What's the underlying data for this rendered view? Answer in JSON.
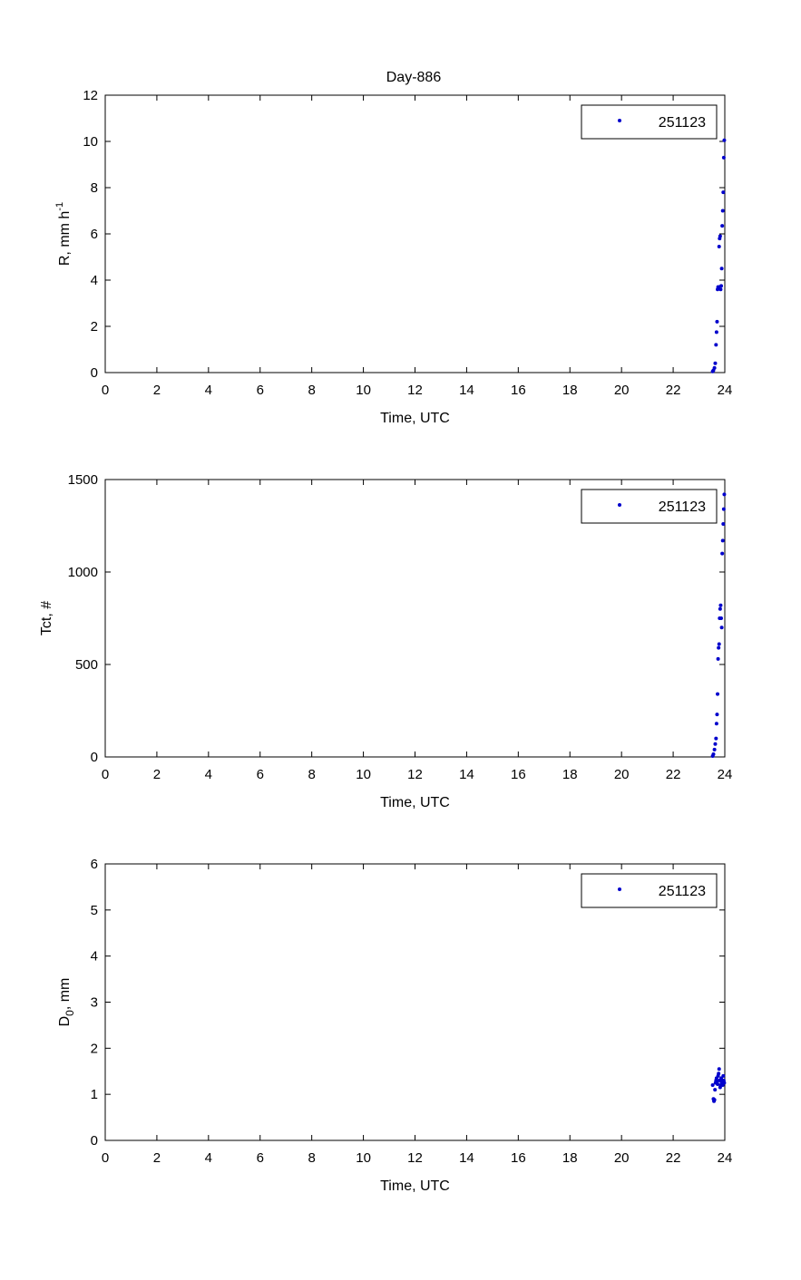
{
  "figure": {
    "title": "Day-886"
  },
  "chart_data": [
    {
      "type": "scatter",
      "title": "Day-886",
      "xlabel": "Time, UTC",
      "ylabel": "R, mm h",
      "ylabel_sup": "-1",
      "xlim": [
        0,
        24
      ],
      "ylim": [
        0,
        12
      ],
      "xticks": [
        0,
        2,
        4,
        6,
        8,
        10,
        12,
        14,
        16,
        18,
        20,
        22,
        24
      ],
      "yticks": [
        0,
        2,
        4,
        6,
        8,
        10,
        12
      ],
      "grid": false,
      "legend_position": "top-right",
      "series": [
        {
          "name": "251123",
          "color": "#0000cc",
          "marker": "dot",
          "x": [
            23.53,
            23.56,
            23.6,
            23.63,
            23.66,
            23.68,
            23.7,
            23.72,
            23.74,
            23.76,
            23.78,
            23.8,
            23.82,
            23.84,
            23.86,
            23.88,
            23.9,
            23.92,
            23.94,
            23.96,
            23.98
          ],
          "y": [
            0.05,
            0.1,
            0.2,
            0.4,
            1.2,
            1.75,
            2.2,
            3.6,
            3.7,
            3.7,
            5.45,
            5.8,
            5.9,
            3.6,
            3.75,
            4.5,
            6.35,
            7.0,
            7.8,
            9.3,
            10.05
          ]
        }
      ]
    },
    {
      "type": "scatter",
      "title": "",
      "xlabel": "Time, UTC",
      "ylabel": "Tct, #",
      "xlim": [
        0,
        24
      ],
      "ylim": [
        0,
        1500
      ],
      "xticks": [
        0,
        2,
        4,
        6,
        8,
        10,
        12,
        14,
        16,
        18,
        20,
        22,
        24
      ],
      "yticks": [
        0,
        500,
        1000,
        1500
      ],
      "grid": false,
      "legend_position": "top-right",
      "series": [
        {
          "name": "251123",
          "color": "#0000cc",
          "marker": "dot",
          "x": [
            23.53,
            23.56,
            23.6,
            23.63,
            23.66,
            23.68,
            23.7,
            23.72,
            23.74,
            23.76,
            23.78,
            23.8,
            23.82,
            23.84,
            23.86,
            23.88,
            23.9,
            23.92,
            23.94,
            23.96,
            23.98
          ],
          "y": [
            5,
            15,
            40,
            70,
            100,
            180,
            230,
            340,
            530,
            590,
            610,
            750,
            800,
            820,
            750,
            700,
            1100,
            1170,
            1260,
            1340,
            1420
          ]
        }
      ]
    },
    {
      "type": "scatter",
      "title": "",
      "xlabel": "Time, UTC",
      "ylabel": "D",
      "ylabel_sub": "0",
      "ylabel_suffix": ", mm",
      "xlim": [
        0,
        24
      ],
      "ylim": [
        0,
        6
      ],
      "xticks": [
        0,
        2,
        4,
        6,
        8,
        10,
        12,
        14,
        16,
        18,
        20,
        22,
        24
      ],
      "yticks": [
        0,
        1,
        2,
        3,
        4,
        5,
        6
      ],
      "grid": false,
      "legend_position": "top-right",
      "series": [
        {
          "name": "251123",
          "color": "#0000cc",
          "marker": "dot",
          "x": [
            23.53,
            23.56,
            23.58,
            23.6,
            23.62,
            23.64,
            23.66,
            23.68,
            23.7,
            23.72,
            23.74,
            23.76,
            23.78,
            23.8,
            23.82,
            23.84,
            23.86,
            23.88,
            23.9,
            23.92,
            23.94,
            23.96,
            23.98
          ],
          "y": [
            1.2,
            0.9,
            0.85,
            0.88,
            1.1,
            1.25,
            1.3,
            1.35,
            1.28,
            1.22,
            1.4,
            1.45,
            1.55,
            1.3,
            1.15,
            1.2,
            1.35,
            1.25,
            1.3,
            1.2,
            1.4,
            1.3,
            1.25
          ]
        }
      ]
    }
  ]
}
